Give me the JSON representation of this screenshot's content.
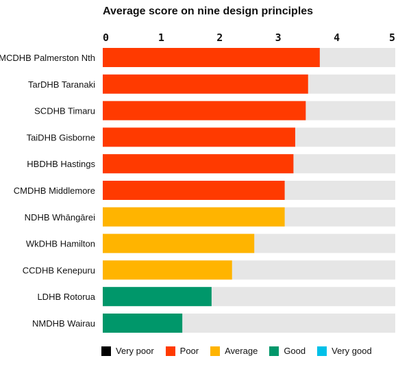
{
  "chart_data": {
    "type": "bar",
    "orientation": "horizontal",
    "title": "Average score on nine design principles",
    "categories": [
      "MCDHB Palmerston Nth",
      "TarDHB Taranaki",
      "SCDHB Timaru",
      "TaiDHB Gisborne",
      "HBDHB Hastings",
      "CMDHB Middlemore",
      "NDHB Whāngārei",
      "WkDHB Hamilton",
      "CCDHB Kenepuru",
      "LDHB Rotorua",
      "NMDHB Wairau"
    ],
    "values": [
      3.71,
      3.51,
      3.47,
      3.29,
      3.26,
      3.11,
      3.11,
      2.59,
      2.21,
      1.86,
      1.36
    ],
    "rating": [
      "Poor",
      "Poor",
      "Poor",
      "Poor",
      "Poor",
      "Poor",
      "Average",
      "Average",
      "Average",
      "Good",
      "Good"
    ],
    "xlim": [
      0,
      5
    ],
    "xticks": [
      "0",
      "1",
      "2",
      "3",
      "4",
      "5"
    ],
    "axis_position": "top",
    "grid": false,
    "track_color": "#e6e6e6",
    "legend_position": "bottom",
    "legend": [
      {
        "label": "Very poor",
        "color": "#000000"
      },
      {
        "label": "Poor",
        "color": "#ff3a00"
      },
      {
        "label": "Average",
        "color": "#ffb400"
      },
      {
        "label": "Good",
        "color": "#00976a"
      },
      {
        "label": "Very good",
        "color": "#00c0e8"
      }
    ]
  }
}
